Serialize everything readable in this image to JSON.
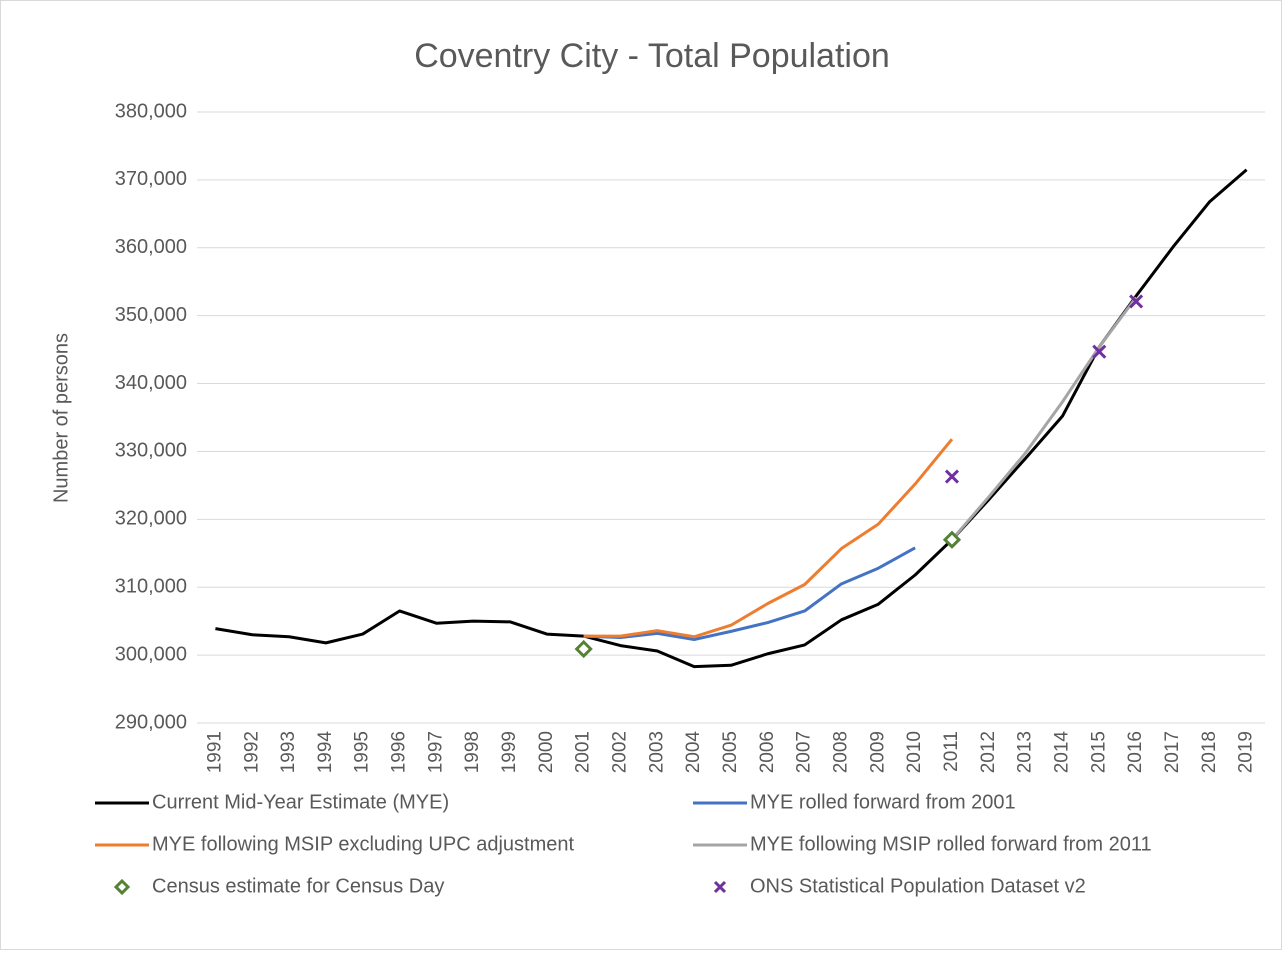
{
  "chart_data": {
    "type": "line",
    "title": "Coventry City - Total Population",
    "y_label": "Number of persons",
    "categories": [
      "1991",
      "1992",
      "1993",
      "1994",
      "1995",
      "1996",
      "1997",
      "1998",
      "1999",
      "2000",
      "2001",
      "2002",
      "2003",
      "2004",
      "2005",
      "2006",
      "2007",
      "2008",
      "2009",
      "2010",
      "2011",
      "2012",
      "2013",
      "2014",
      "2015",
      "2016",
      "2017",
      "2018",
      "2019"
    ],
    "ylim": [
      290000,
      380000
    ],
    "yticks": [
      {
        "value": 290000,
        "label": "290,000"
      },
      {
        "value": 300000,
        "label": "300,000"
      },
      {
        "value": 310000,
        "label": "310,000"
      },
      {
        "value": 320000,
        "label": "320,000"
      },
      {
        "value": 330000,
        "label": "330,000"
      },
      {
        "value": 340000,
        "label": "340,000"
      },
      {
        "value": 350000,
        "label": "350,000"
      },
      {
        "value": 360000,
        "label": "360,000"
      },
      {
        "value": 370000,
        "label": "370,000"
      },
      {
        "value": 380000,
        "label": "380,000"
      }
    ],
    "grid": true,
    "legend": "bottom",
    "series": [
      {
        "name": "Current Mid-Year Estimate (MYE)",
        "color": "#000000",
        "mark": "line",
        "values": [
          303900,
          303000,
          302700,
          301800,
          303100,
          306500,
          304700,
          305000,
          304900,
          303100,
          302800,
          301400,
          300600,
          298300,
          298500,
          300200,
          301500,
          305200,
          307500,
          311800,
          317000,
          322900,
          329000,
          335200,
          345400,
          352900,
          360100,
          366800,
          371500
        ]
      },
      {
        "name": "MYE rolled forward from 2001",
        "color": "#4472c4",
        "mark": "line",
        "values": [
          null,
          null,
          null,
          null,
          null,
          null,
          null,
          null,
          null,
          null,
          302800,
          302600,
          303200,
          302300,
          303500,
          304800,
          306500,
          310500,
          312800,
          315800,
          null,
          null,
          null,
          null,
          null,
          null,
          null,
          null,
          null
        ]
      },
      {
        "name": "MYE following MSIP excluding UPC adjustment",
        "color": "#ed7d31",
        "mark": "line",
        "values": [
          null,
          null,
          null,
          null,
          null,
          null,
          null,
          null,
          null,
          null,
          302800,
          302800,
          303600,
          302700,
          304400,
          307600,
          310400,
          315700,
          319300,
          325200,
          331800,
          null,
          null,
          null,
          null,
          null,
          null,
          null,
          null
        ]
      },
      {
        "name": "MYE following MSIP rolled forward from 2011",
        "color": "#a5a5a5",
        "mark": "line",
        "values": [
          null,
          null,
          null,
          null,
          null,
          null,
          null,
          null,
          null,
          null,
          null,
          null,
          null,
          null,
          null,
          null,
          null,
          null,
          null,
          null,
          317000,
          323300,
          329800,
          337300,
          345400,
          352700,
          null,
          null,
          null
        ]
      },
      {
        "name": "Census estimate for Census Day",
        "color": "#548235",
        "mark": "diamond",
        "values": [
          null,
          null,
          null,
          null,
          null,
          null,
          null,
          null,
          null,
          null,
          300900,
          null,
          null,
          null,
          null,
          null,
          null,
          null,
          null,
          null,
          317000,
          null,
          null,
          null,
          null,
          null,
          null,
          null,
          null
        ]
      },
      {
        "name": "ONS Statistical Population Dataset v2",
        "color": "#7030a0",
        "mark": "cross",
        "values": [
          null,
          null,
          null,
          null,
          null,
          null,
          null,
          null,
          null,
          null,
          null,
          null,
          null,
          null,
          null,
          null,
          null,
          null,
          null,
          null,
          326300,
          null,
          null,
          null,
          344700,
          352100,
          null,
          null,
          null
        ]
      }
    ]
  }
}
